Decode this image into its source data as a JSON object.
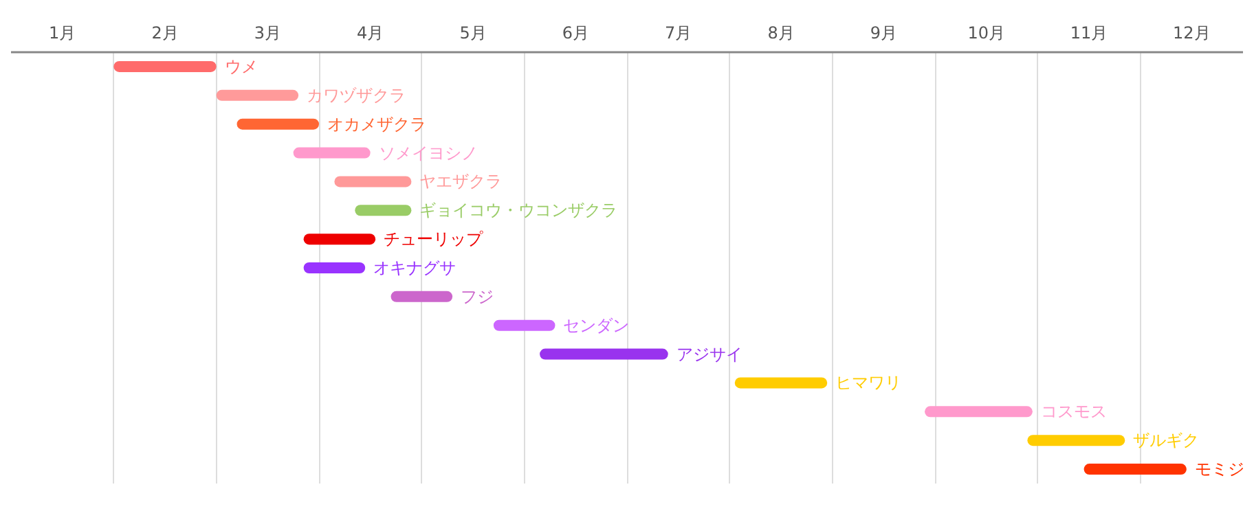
{
  "chart_data": {
    "type": "bar",
    "orientation": "horizontal",
    "tick_labels": "x",
    "grid": "x",
    "categories": [
      "ウメ",
      "カワヅザクラ",
      "オカメザクラ",
      "ソメイヨシノ",
      "ヤエザクラ",
      "ギョイコウ・ウコンザクラ",
      "チューリップ",
      "オキナグサ",
      "フジ",
      "センダン",
      "アジサイ",
      "ヒマワリ",
      "コスモス",
      "ザルギク",
      "モミジ"
    ],
    "base": [
      1.0,
      2.0,
      2.2,
      2.75,
      3.15,
      3.35,
      2.85,
      2.85,
      3.7,
      4.7,
      5.15,
      7.05,
      8.9,
      9.9,
      10.45
    ],
    "values": [
      1.0,
      0.8,
      0.8,
      0.75,
      0.75,
      0.55,
      0.7,
      0.6,
      0.6,
      0.6,
      1.25,
      0.9,
      1.05,
      0.95,
      1.0
    ],
    "colors": [
      "#ff6b6b",
      "#ff9a9a",
      "#ff6633",
      "#ff99cc",
      "#ff9999",
      "#99cc66",
      "#ee0000",
      "#9933ff",
      "#cc66cc",
      "#cc66ff",
      "#9933ee",
      "#ffcc00",
      "#ff99cc",
      "#ffcc00",
      "#ff3300"
    ],
    "xlim": [
      0,
      12
    ],
    "xticks": [
      {
        "value": 0.5,
        "label": "1月"
      },
      {
        "value": 1,
        "label": null
      },
      {
        "value": 1.5,
        "label": "2月"
      },
      {
        "value": 2,
        "label": null
      },
      {
        "value": 2.5,
        "label": "3月"
      },
      {
        "value": 3,
        "label": null
      },
      {
        "value": 3.5,
        "label": "4月"
      },
      {
        "value": 4,
        "label": null
      },
      {
        "value": 4.5,
        "label": "5月"
      },
      {
        "value": 5,
        "label": null
      },
      {
        "value": 5.5,
        "label": "6月"
      },
      {
        "value": 6,
        "label": null
      },
      {
        "value": 6.5,
        "label": "7月"
      },
      {
        "value": 7,
        "label": null
      },
      {
        "value": 7.5,
        "label": "8月"
      },
      {
        "value": 8,
        "label": null
      },
      {
        "value": 8.5,
        "label": "9月"
      },
      {
        "value": 9,
        "label": null
      },
      {
        "value": 9.5,
        "label": "10月"
      },
      {
        "value": 10,
        "label": null
      },
      {
        "value": 10.5,
        "label": "11月"
      },
      {
        "value": 11,
        "label": null
      },
      {
        "value": 11.5,
        "label": "12月"
      }
    ]
  }
}
